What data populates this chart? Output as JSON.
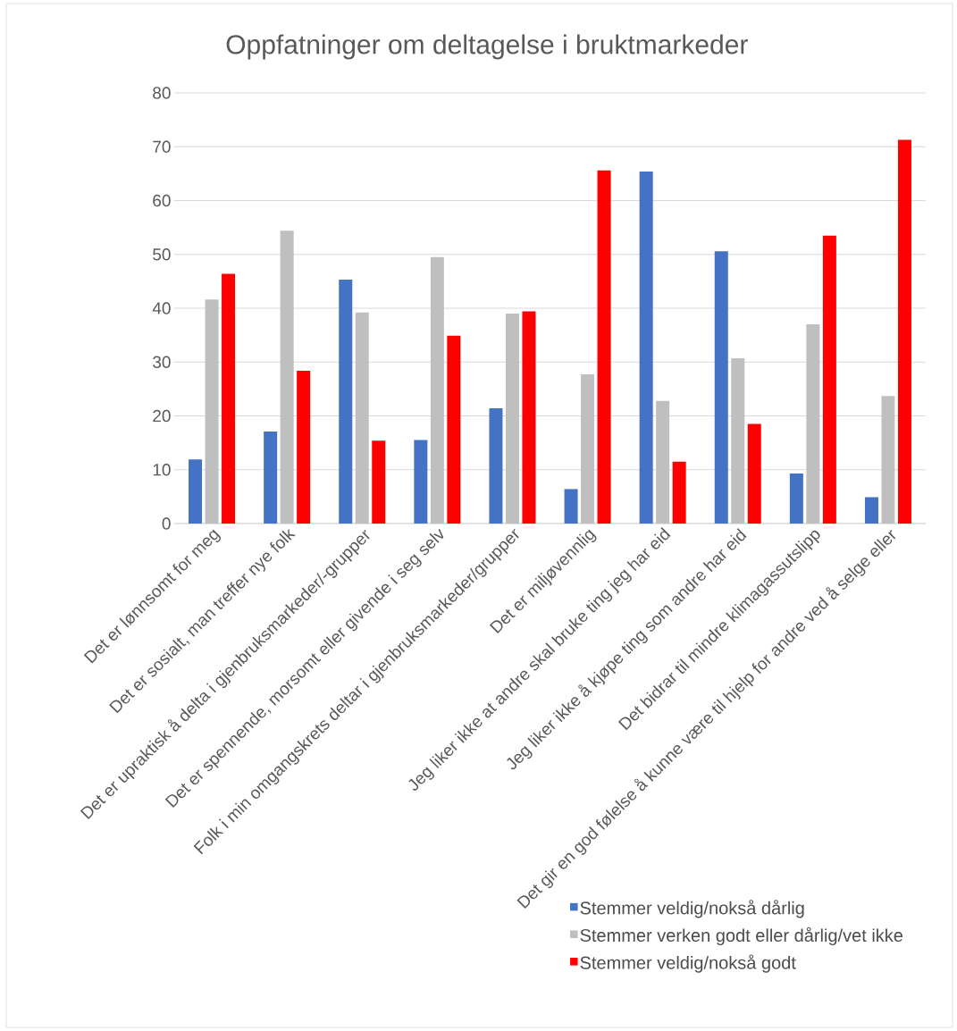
{
  "chart_data": {
    "type": "bar",
    "title": "Oppfatninger om deltagelse i bruktmarkeder",
    "categories": [
      "Det er lønnsomt for meg",
      "Det er sosialt, man treffer nye folk",
      "Det er upraktisk å delta i gjenbruksmarkeder/-grupper",
      "Det er spennende, morsomt eller givende i seg selv",
      "Folk i min omgangskrets deltar i gjenbruksmarkeder/grupper",
      "Det er miljøvennlig",
      "Jeg liker ikke at andre skal bruke ting jeg har eid",
      "Jeg liker ikke å kjøpe ting som andre har eid",
      "Det bidrar til mindre klimagassutslipp",
      "Det gir en god følelse å kunne være til hjelp for andre ved å selge eller"
    ],
    "series": [
      {
        "name": "Stemmer veldig/nokså dårlig",
        "color": "#4472c4",
        "values": [
          11.9,
          17.1,
          45.3,
          15.5,
          21.4,
          6.4,
          65.4,
          50.6,
          9.3,
          4.9
        ]
      },
      {
        "name": "Stemmer verken godt eller dårlig/vet ikke",
        "color": "#bfbfbf",
        "values": [
          41.6,
          54.4,
          39.2,
          49.5,
          39.0,
          27.7,
          22.8,
          30.7,
          37.0,
          23.7
        ]
      },
      {
        "name": "Stemmer veldig/nokså godt",
        "color": "#ff0000",
        "values": [
          46.4,
          28.4,
          15.4,
          34.9,
          39.4,
          65.6,
          11.5,
          18.5,
          53.5,
          71.3
        ]
      }
    ],
    "ylim": [
      0,
      80
    ],
    "yticks": [
      0,
      10,
      20,
      30,
      40,
      50,
      60,
      70,
      80
    ],
    "grid": "y",
    "legend": "bottom right"
  }
}
